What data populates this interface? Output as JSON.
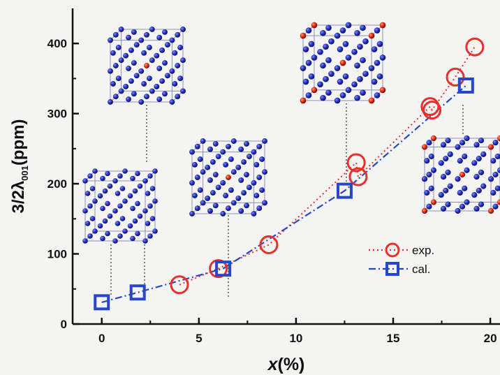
{
  "chart_data": {
    "type": "scatter",
    "xlabel": {
      "var": "x",
      "unit": "(%)"
    },
    "ylabel": {
      "main": "3/2λ",
      "sub": "001",
      "unit": "(ppm)"
    },
    "xlim": [
      -1.5,
      20.5
    ],
    "ylim": [
      0,
      450
    ],
    "xticks": [
      0,
      5,
      10,
      15,
      20
    ],
    "yticks": [
      0,
      100,
      200,
      300,
      400
    ],
    "series": [
      {
        "name": "exp.",
        "marker": "circle",
        "line": "dotted",
        "color": "#e8312a",
        "x": [
          4.0,
          6.0,
          8.6,
          13.1,
          13.2,
          16.9,
          17.0,
          18.2,
          19.2
        ],
        "y": [
          56,
          79,
          113,
          230,
          210,
          310,
          305,
          352,
          395
        ]
      },
      {
        "name": "cal.",
        "marker": "square",
        "line": "dash-dot",
        "color": "#2746c9",
        "x": [
          0,
          1.85,
          6.25,
          12.5,
          18.75
        ],
        "y": [
          31,
          45,
          79,
          190,
          340
        ]
      }
    ],
    "legend_position": "lower-right",
    "annotations": [
      {
        "type": "crystal-structure-inset",
        "position": "upper-left"
      },
      {
        "type": "crystal-structure-inset",
        "position": "left"
      },
      {
        "type": "crystal-structure-inset",
        "position": "center"
      },
      {
        "type": "crystal-structure-inset",
        "position": "upper-center-right"
      },
      {
        "type": "crystal-structure-inset",
        "position": "right"
      }
    ]
  }
}
